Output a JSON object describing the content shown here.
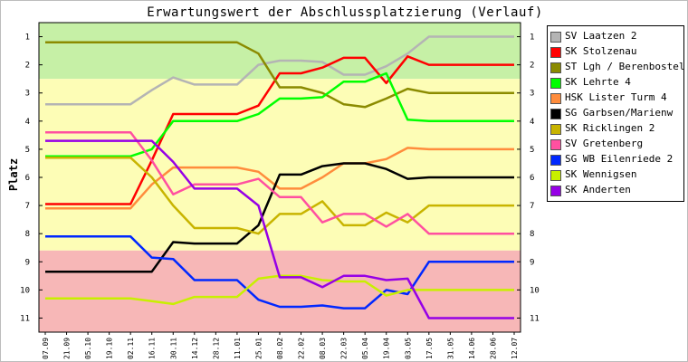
{
  "chart_data": {
    "type": "line",
    "title": "Erwartungswert der Abschlussplatzierung (Verlauf)",
    "xlabel": "",
    "ylabel": "Platz",
    "ylim": [
      0.5,
      11.5
    ],
    "y_inverted": true,
    "yticks": [
      "1",
      "2",
      "3",
      "4",
      "5",
      "6",
      "7",
      "8",
      "9",
      "10",
      "11"
    ],
    "categories": [
      "07.09",
      "21.09",
      "05.10",
      "19.10",
      "02.11",
      "16.11",
      "30.11",
      "14.12",
      "28.12",
      "11.01",
      "25.01",
      "08.02",
      "22.02",
      "08.03",
      "22.03",
      "05.04",
      "19.04",
      "03.05",
      "17.05",
      "31.05",
      "14.06",
      "28.06",
      "12.07"
    ],
    "bands": [
      {
        "from": 0.5,
        "to": 2.5,
        "color": "#c6f0a6"
      },
      {
        "from": 2.5,
        "to": 8.6,
        "color": "#fdfdb6"
      },
      {
        "from": 8.6,
        "to": 11.5,
        "color": "#f7b7b7"
      }
    ],
    "grid": false,
    "legend_position": "right",
    "series": [
      {
        "name": "SV Laatzen 2",
        "color": "#b4b4b4",
        "values": [
          3.4,
          3.4,
          3.4,
          3.4,
          3.4,
          2.9,
          2.45,
          2.7,
          2.7,
          2.7,
          2.0,
          1.85,
          1.85,
          1.9,
          2.35,
          2.35,
          2.05,
          1.6,
          1.0,
          1.0,
          1.0,
          1.0,
          1.0
        ]
      },
      {
        "name": "SK Stolzenau",
        "color": "#ff0000",
        "values": [
          6.95,
          6.95,
          6.95,
          6.95,
          6.95,
          5.4,
          3.75,
          3.75,
          3.75,
          3.75,
          3.45,
          2.3,
          2.3,
          2.1,
          1.75,
          1.75,
          2.65,
          1.7,
          2.0,
          2.0,
          2.0,
          2.0,
          2.0
        ]
      },
      {
        "name": "ST Lgh / Berenbostel 2",
        "color": "#8b8b00",
        "values": [
          1.2,
          1.2,
          1.2,
          1.2,
          1.2,
          1.2,
          1.2,
          1.2,
          1.2,
          1.2,
          1.6,
          2.8,
          2.8,
          3.0,
          3.4,
          3.5,
          3.2,
          2.85,
          3.0,
          3.0,
          3.0,
          3.0,
          3.0
        ]
      },
      {
        "name": "SK Lehrte 4",
        "color": "#00ff00",
        "values": [
          5.25,
          5.25,
          5.25,
          5.25,
          5.25,
          5.0,
          4.0,
          4.0,
          4.0,
          4.0,
          3.75,
          3.2,
          3.2,
          3.15,
          2.6,
          2.6,
          2.3,
          3.95,
          4.0,
          4.0,
          4.0,
          4.0,
          4.0
        ]
      },
      {
        "name": "HSK Lister Turm 4",
        "color": "#ff8c3c",
        "values": [
          7.1,
          7.1,
          7.1,
          7.1,
          7.1,
          6.25,
          5.65,
          5.65,
          5.65,
          5.65,
          5.8,
          6.4,
          6.4,
          6.0,
          5.5,
          5.5,
          5.35,
          4.95,
          5.0,
          5.0,
          5.0,
          5.0,
          5.0
        ]
      },
      {
        "name": "SG Garbsen/Marienw",
        "color": "#000000",
        "values": [
          9.35,
          9.35,
          9.35,
          9.35,
          9.35,
          9.35,
          8.3,
          8.35,
          8.35,
          8.35,
          7.7,
          5.9,
          5.9,
          5.6,
          5.5,
          5.5,
          5.7,
          6.05,
          6.0,
          6.0,
          6.0,
          6.0,
          6.0
        ]
      },
      {
        "name": "SK Ricklingen 2",
        "color": "#c8b400",
        "values": [
          5.3,
          5.3,
          5.3,
          5.3,
          5.3,
          6.0,
          7.0,
          7.8,
          7.8,
          7.8,
          8.0,
          7.3,
          7.3,
          6.85,
          7.7,
          7.7,
          7.25,
          7.6,
          7.0,
          7.0,
          7.0,
          7.0,
          7.0
        ]
      },
      {
        "name": "SV Gretenberg",
        "color": "#ff50a0",
        "values": [
          4.4,
          4.4,
          4.4,
          4.4,
          4.4,
          5.4,
          6.6,
          6.25,
          6.25,
          6.25,
          6.05,
          6.7,
          6.7,
          7.6,
          7.3,
          7.3,
          7.75,
          7.3,
          8.0,
          8.0,
          8.0,
          8.0,
          8.0
        ]
      },
      {
        "name": "SG WB Eilenriede 2",
        "color": "#0028ff",
        "values": [
          8.1,
          8.1,
          8.1,
          8.1,
          8.1,
          8.85,
          8.9,
          9.65,
          9.65,
          9.65,
          10.35,
          10.6,
          10.6,
          10.55,
          10.65,
          10.65,
          10.0,
          10.15,
          9.0,
          9.0,
          9.0,
          9.0,
          9.0
        ]
      },
      {
        "name": "SK Wennigsen",
        "color": "#c8f000",
        "values": [
          10.3,
          10.3,
          10.3,
          10.3,
          10.3,
          10.4,
          10.5,
          10.25,
          10.25,
          10.25,
          9.6,
          9.5,
          9.5,
          9.65,
          9.7,
          9.7,
          10.2,
          10.0,
          10.0,
          10.0,
          10.0,
          10.0,
          10.0
        ]
      },
      {
        "name": "SK Anderten",
        "color": "#9600e6",
        "values": [
          4.7,
          4.7,
          4.7,
          4.7,
          4.7,
          4.7,
          5.45,
          6.4,
          6.4,
          6.4,
          7.0,
          9.55,
          9.55,
          9.9,
          9.5,
          9.5,
          9.65,
          9.6,
          11.0,
          11.0,
          11.0,
          11.0,
          11.0
        ]
      }
    ]
  }
}
